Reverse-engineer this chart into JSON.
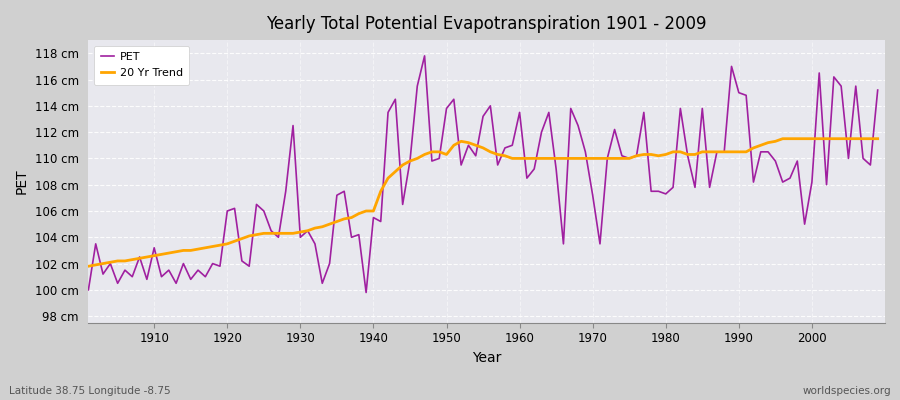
{
  "title": "Yearly Total Potential Evapotranspiration 1901 - 2009",
  "xlabel": "Year",
  "ylabel": "PET",
  "subtitle_left": "Latitude 38.75 Longitude -8.75",
  "subtitle_right": "worldspecies.org",
  "ylim": [
    97.5,
    119
  ],
  "yticks": [
    98,
    100,
    102,
    104,
    106,
    108,
    110,
    112,
    114,
    116,
    118
  ],
  "ytick_labels": [
    "98 cm",
    "100 cm",
    "102 cm",
    "104 cm",
    "106 cm",
    "108 cm",
    "110 cm",
    "112 cm",
    "114 cm",
    "116 cm",
    "118 cm"
  ],
  "xlim": [
    1901,
    2010
  ],
  "xticks": [
    1910,
    1920,
    1930,
    1940,
    1950,
    1960,
    1970,
    1980,
    1990,
    2000
  ],
  "pet_color": "#a020a0",
  "trend_color": "#ffa500",
  "background_color": "#dcdcdc",
  "plot_bg_color": "#e8e8f0",
  "grid_color": "#ffffff",
  "legend_labels": [
    "PET",
    "20 Yr Trend"
  ],
  "pet_years": [
    1901,
    1902,
    1903,
    1904,
    1905,
    1906,
    1907,
    1908,
    1909,
    1910,
    1911,
    1912,
    1913,
    1914,
    1915,
    1916,
    1917,
    1918,
    1919,
    1920,
    1921,
    1922,
    1923,
    1924,
    1925,
    1926,
    1927,
    1928,
    1929,
    1930,
    1931,
    1932,
    1933,
    1934,
    1935,
    1936,
    1937,
    1938,
    1939,
    1940,
    1941,
    1942,
    1943,
    1944,
    1945,
    1946,
    1947,
    1948,
    1949,
    1950,
    1951,
    1952,
    1953,
    1954,
    1955,
    1956,
    1957,
    1958,
    1959,
    1960,
    1961,
    1962,
    1963,
    1964,
    1965,
    1966,
    1967,
    1968,
    1969,
    1970,
    1971,
    1972,
    1973,
    1974,
    1975,
    1976,
    1977,
    1978,
    1979,
    1980,
    1981,
    1982,
    1983,
    1984,
    1985,
    1986,
    1987,
    1988,
    1989,
    1990,
    1991,
    1992,
    1993,
    1994,
    1995,
    1996,
    1997,
    1998,
    1999,
    2000,
    2001,
    2002,
    2003,
    2004,
    2005,
    2006,
    2007,
    2008,
    2009
  ],
  "pet_values": [
    100.0,
    103.5,
    101.2,
    102.0,
    100.5,
    101.5,
    101.0,
    102.5,
    100.8,
    103.2,
    101.0,
    101.5,
    100.5,
    102.0,
    100.8,
    101.5,
    101.0,
    102.0,
    101.8,
    106.0,
    106.2,
    102.2,
    101.8,
    106.5,
    106.0,
    104.5,
    104.0,
    107.5,
    112.5,
    104.0,
    104.5,
    103.5,
    100.5,
    102.0,
    107.2,
    107.5,
    104.0,
    104.2,
    99.8,
    105.5,
    105.2,
    113.5,
    114.5,
    106.5,
    109.8,
    115.5,
    117.8,
    109.8,
    110.0,
    113.8,
    114.5,
    109.5,
    111.0,
    110.2,
    113.2,
    114.0,
    109.5,
    110.8,
    111.0,
    113.5,
    108.5,
    109.2,
    112.0,
    113.5,
    109.2,
    103.5,
    113.8,
    112.5,
    110.5,
    107.2,
    103.5,
    110.0,
    112.2,
    110.2,
    110.0,
    110.2,
    113.5,
    107.5,
    107.5,
    107.3,
    107.8,
    113.8,
    110.2,
    107.8,
    113.8,
    107.8,
    110.5,
    110.5,
    117.0,
    115.0,
    114.8,
    108.2,
    110.5,
    110.5,
    109.8,
    108.2,
    108.5,
    109.8,
    105.0,
    108.2,
    116.5,
    108.0,
    116.2,
    115.5,
    110.0,
    115.5,
    110.0,
    109.5,
    115.2
  ],
  "trend_years": [
    1901,
    1902,
    1903,
    1904,
    1905,
    1906,
    1907,
    1908,
    1909,
    1910,
    1911,
    1912,
    1913,
    1914,
    1915,
    1916,
    1917,
    1918,
    1919,
    1920,
    1921,
    1922,
    1923,
    1924,
    1925,
    1926,
    1927,
    1928,
    1929,
    1930,
    1931,
    1932,
    1933,
    1934,
    1935,
    1936,
    1937,
    1938,
    1939,
    1940,
    1941,
    1942,
    1943,
    1944,
    1945,
    1946,
    1947,
    1948,
    1949,
    1950,
    1951,
    1952,
    1953,
    1954,
    1955,
    1956,
    1957,
    1958,
    1959,
    1960,
    1961,
    1962,
    1963,
    1964,
    1965,
    1966,
    1967,
    1968,
    1969,
    1970,
    1971,
    1972,
    1973,
    1974,
    1975,
    1976,
    1977,
    1978,
    1979,
    1980,
    1981,
    1982,
    1983,
    1984,
    1985,
    1986,
    1987,
    1988,
    1989,
    1990,
    1991,
    1992,
    1993,
    1994,
    1995,
    1996,
    1997,
    1998,
    1999,
    2000,
    2001,
    2002,
    2003,
    2004,
    2005,
    2006,
    2007,
    2008,
    2009
  ],
  "trend_values": [
    101.8,
    101.9,
    102.0,
    102.1,
    102.2,
    102.2,
    102.3,
    102.4,
    102.5,
    102.6,
    102.7,
    102.8,
    102.9,
    103.0,
    103.0,
    103.1,
    103.2,
    103.3,
    103.4,
    103.5,
    103.7,
    103.9,
    104.1,
    104.2,
    104.3,
    104.3,
    104.3,
    104.3,
    104.3,
    104.4,
    104.5,
    104.7,
    104.8,
    105.0,
    105.2,
    105.4,
    105.5,
    105.8,
    106.0,
    106.0,
    107.5,
    108.5,
    109.0,
    109.5,
    109.8,
    110.0,
    110.3,
    110.5,
    110.5,
    110.3,
    111.0,
    111.3,
    111.2,
    111.0,
    110.8,
    110.5,
    110.3,
    110.2,
    110.0,
    110.0,
    110.0,
    110.0,
    110.0,
    110.0,
    110.0,
    110.0,
    110.0,
    110.0,
    110.0,
    110.0,
    110.0,
    110.0,
    110.0,
    110.0,
    110.0,
    110.2,
    110.3,
    110.3,
    110.2,
    110.3,
    110.5,
    110.5,
    110.3,
    110.3,
    110.5,
    110.5,
    110.5,
    110.5,
    110.5,
    110.5,
    110.5,
    110.8,
    111.0,
    111.2,
    111.3,
    111.5,
    111.5,
    111.5,
    111.5,
    111.5,
    111.5,
    111.5,
    111.5,
    111.5,
    111.5,
    111.5,
    111.5,
    111.5,
    111.5
  ]
}
